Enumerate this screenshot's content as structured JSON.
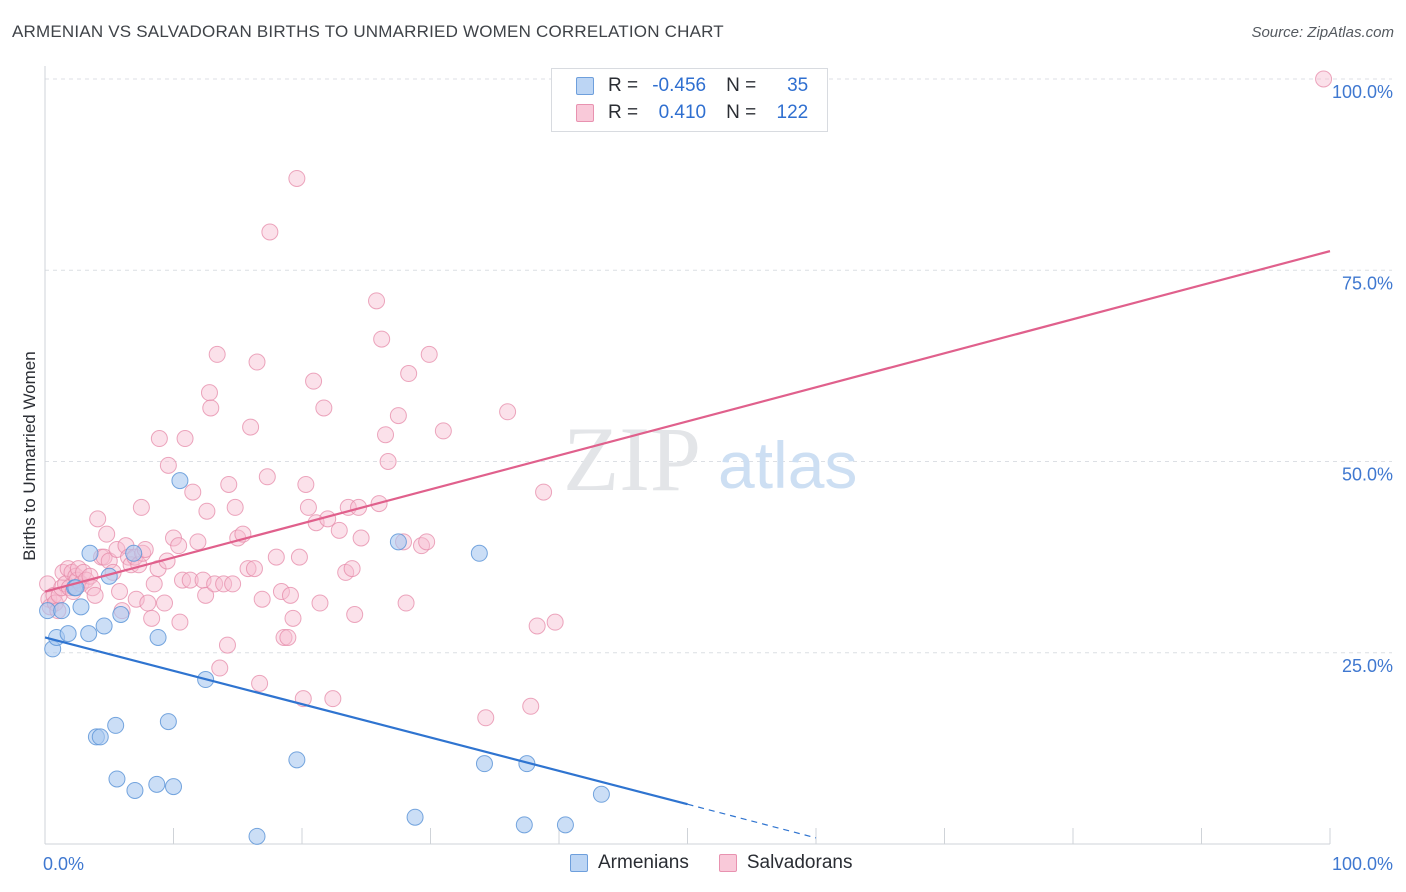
{
  "title": "ARMENIAN VS SALVADORAN BIRTHS TO UNMARRIED WOMEN CORRELATION CHART",
  "source": "Source: ZipAtlas.com",
  "watermark": {
    "zip": "ZIP",
    "atlas": "atlas"
  },
  "legend": {
    "r_label": "R =",
    "n_label": "N =",
    "armenians": {
      "r": "-0.456",
      "n": "35"
    },
    "salvadorans": {
      "r": "0.410",
      "n": "122"
    }
  },
  "colors": {
    "armenians_fill": "#a8c8f0",
    "armenians_stroke": "#5f97d8",
    "armenians_line": "#2f74d0",
    "salvadorans_fill": "#f6bcd0",
    "salvadorans_stroke": "#e58aa8",
    "salvadorans_line": "#e0608c",
    "axis_text": "#3f78d0",
    "grid": "#dcdfe4"
  },
  "chart_data": {
    "type": "scatter",
    "title": "ARMENIAN VS SALVADORAN BIRTHS TO UNMARRIED WOMEN CORRELATION CHART",
    "xlabel": "",
    "ylabel": "Births to Unmarried Women",
    "xlim": [
      0,
      100
    ],
    "ylim": [
      0,
      100
    ],
    "x_tick_labels": [
      "0.0%",
      "100.0%"
    ],
    "y_ticks": [
      25,
      50,
      75,
      100
    ],
    "y_tick_labels": [
      "25.0%",
      "50.0%",
      "75.0%",
      "100.0%"
    ],
    "legend_position": "top-center",
    "series": [
      {
        "name": "Armenians",
        "r": -0.456,
        "n": 35,
        "trend": {
          "x0": 0,
          "y0": 27.0,
          "x1": 50,
          "y1": 5.2,
          "dash_x1": 60,
          "dash_y1": 0.8
        },
        "points": [
          [
            0.2,
            30.5
          ],
          [
            0.6,
            25.5
          ],
          [
            0.9,
            27.0
          ],
          [
            1.3,
            30.5
          ],
          [
            1.8,
            27.5
          ],
          [
            2.3,
            33.5
          ],
          [
            2.8,
            31.0
          ],
          [
            3.4,
            27.5
          ],
          [
            3.5,
            38.0
          ],
          [
            4.0,
            14.0
          ],
          [
            4.3,
            14.0
          ],
          [
            4.6,
            28.5
          ],
          [
            5.0,
            35.0
          ],
          [
            5.5,
            15.5
          ],
          [
            5.6,
            8.5
          ],
          [
            5.9,
            30.0
          ],
          [
            7.0,
            7.0
          ],
          [
            6.9,
            38.0
          ],
          [
            8.7,
            7.8
          ],
          [
            8.8,
            27.0
          ],
          [
            9.6,
            16.0
          ],
          [
            10.5,
            47.5
          ],
          [
            10.0,
            7.5
          ],
          [
            12.5,
            21.5
          ],
          [
            16.5,
            1.0
          ],
          [
            19.6,
            11.0
          ],
          [
            27.5,
            39.5
          ],
          [
            28.8,
            3.5
          ],
          [
            33.8,
            38.0
          ],
          [
            34.2,
            10.5
          ],
          [
            37.5,
            10.5
          ],
          [
            37.3,
            2.5
          ],
          [
            40.5,
            2.5
          ],
          [
            43.3,
            6.5
          ],
          [
            2.4,
            33.5
          ]
        ]
      },
      {
        "name": "Salvadorans",
        "r": 0.41,
        "n": 122,
        "trend": {
          "x0": 0,
          "y0": 33.0,
          "x1": 100,
          "y1": 77.5
        },
        "points": [
          [
            0.2,
            34.0
          ],
          [
            0.3,
            32.0
          ],
          [
            0.4,
            31.0
          ],
          [
            0.7,
            32.5
          ],
          [
            0.8,
            31.5
          ],
          [
            1.0,
            30.5
          ],
          [
            1.1,
            32.5
          ],
          [
            1.3,
            33.5
          ],
          [
            1.4,
            35.5
          ],
          [
            1.6,
            34.0
          ],
          [
            1.8,
            36.0
          ],
          [
            1.9,
            33.5
          ],
          [
            2.1,
            35.5
          ],
          [
            2.2,
            33.0
          ],
          [
            2.4,
            35.0
          ],
          [
            2.5,
            34.5
          ],
          [
            2.6,
            36.0
          ],
          [
            2.8,
            34.0
          ],
          [
            3.0,
            35.5
          ],
          [
            3.2,
            34.5
          ],
          [
            3.5,
            35.0
          ],
          [
            3.7,
            33.5
          ],
          [
            3.9,
            32.5
          ],
          [
            4.1,
            42.5
          ],
          [
            4.4,
            37.5
          ],
          [
            4.6,
            37.5
          ],
          [
            4.8,
            40.5
          ],
          [
            5.0,
            37.0
          ],
          [
            5.3,
            35.5
          ],
          [
            5.6,
            38.5
          ],
          [
            5.8,
            33.0
          ],
          [
            6.0,
            30.5
          ],
          [
            6.3,
            39.0
          ],
          [
            6.5,
            37.5
          ],
          [
            6.7,
            36.5
          ],
          [
            7.0,
            37.5
          ],
          [
            7.1,
            32.0
          ],
          [
            7.3,
            36.5
          ],
          [
            7.5,
            44.0
          ],
          [
            7.6,
            38.0
          ],
          [
            7.8,
            38.5
          ],
          [
            8.0,
            31.5
          ],
          [
            8.3,
            29.5
          ],
          [
            8.5,
            34.0
          ],
          [
            8.8,
            36.0
          ],
          [
            8.9,
            53.0
          ],
          [
            9.3,
            31.5
          ],
          [
            9.5,
            37.0
          ],
          [
            9.6,
            49.5
          ],
          [
            10.0,
            40.0
          ],
          [
            10.4,
            39.0
          ],
          [
            10.5,
            29.0
          ],
          [
            10.7,
            34.5
          ],
          [
            10.9,
            53.0
          ],
          [
            11.3,
            34.5
          ],
          [
            11.5,
            46.0
          ],
          [
            11.9,
            39.5
          ],
          [
            12.3,
            34.5
          ],
          [
            12.5,
            32.5
          ],
          [
            12.6,
            43.5
          ],
          [
            12.8,
            59.0
          ],
          [
            12.9,
            57.0
          ],
          [
            13.2,
            34.0
          ],
          [
            13.4,
            64.0
          ],
          [
            13.6,
            23.0
          ],
          [
            13.9,
            34.0
          ],
          [
            14.2,
            26.0
          ],
          [
            14.3,
            47.0
          ],
          [
            14.6,
            34.0
          ],
          [
            14.8,
            44.0
          ],
          [
            15.0,
            40.0
          ],
          [
            15.4,
            40.5
          ],
          [
            15.8,
            36.0
          ],
          [
            16.0,
            54.5
          ],
          [
            16.3,
            36.0
          ],
          [
            16.5,
            63.0
          ],
          [
            16.7,
            21.0
          ],
          [
            16.9,
            32.0
          ],
          [
            17.3,
            48.0
          ],
          [
            17.5,
            80.0
          ],
          [
            18.0,
            37.5
          ],
          [
            18.4,
            33.0
          ],
          [
            18.6,
            27.0
          ],
          [
            18.9,
            27.0
          ],
          [
            19.1,
            32.5
          ],
          [
            19.3,
            29.5
          ],
          [
            19.6,
            87.0
          ],
          [
            19.8,
            37.5
          ],
          [
            20.1,
            19.0
          ],
          [
            20.3,
            47.0
          ],
          [
            20.5,
            44.0
          ],
          [
            20.9,
            60.5
          ],
          [
            21.1,
            42.0
          ],
          [
            21.4,
            31.5
          ],
          [
            21.7,
            57.0
          ],
          [
            22.0,
            42.5
          ],
          [
            22.4,
            19.0
          ],
          [
            22.9,
            41.0
          ],
          [
            23.4,
            35.5
          ],
          [
            23.6,
            44.0
          ],
          [
            23.9,
            36.0
          ],
          [
            24.1,
            30.0
          ],
          [
            24.4,
            44.0
          ],
          [
            24.6,
            40.0
          ],
          [
            25.8,
            71.0
          ],
          [
            26.0,
            44.5
          ],
          [
            26.2,
            66.0
          ],
          [
            26.5,
            53.5
          ],
          [
            26.7,
            50.0
          ],
          [
            27.5,
            56.0
          ],
          [
            27.9,
            39.5
          ],
          [
            28.1,
            31.5
          ],
          [
            28.3,
            61.5
          ],
          [
            29.3,
            39.0
          ],
          [
            29.7,
            39.5
          ],
          [
            29.9,
            64.0
          ],
          [
            31.0,
            54.0
          ],
          [
            34.3,
            16.5
          ],
          [
            36.0,
            56.5
          ],
          [
            37.8,
            18.0
          ],
          [
            38.3,
            28.5
          ],
          [
            38.8,
            46.0
          ],
          [
            39.7,
            29.0
          ],
          [
            99.5,
            100.0
          ]
        ]
      }
    ]
  }
}
